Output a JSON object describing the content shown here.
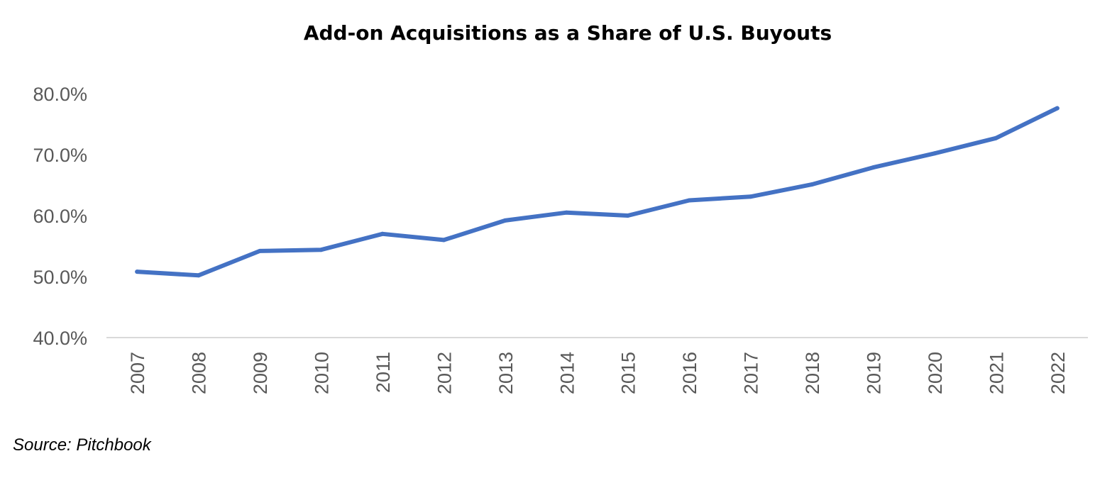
{
  "chart_data": {
    "type": "line",
    "title": "Add-on Acquisitions as a Share of U.S. Buyouts",
    "xlabel": "",
    "ylabel": "",
    "x": [
      "2007",
      "2008",
      "2009",
      "2010",
      "2011",
      "2012",
      "2013",
      "2014",
      "2015",
      "2016",
      "2017",
      "2018",
      "2019",
      "2020",
      "2021",
      "2022"
    ],
    "series": [
      {
        "values": [
          50.8,
          50.2,
          54.2,
          54.4,
          57.0,
          56.0,
          59.2,
          60.5,
          60.0,
          62.5,
          63.1,
          65.1,
          67.9,
          70.2,
          72.7,
          77.6
        ]
      }
    ],
    "ylim": [
      40,
      80
    ],
    "y_ticks": [
      "40.0%",
      "50.0%",
      "60.0%",
      "70.0%",
      "80.0%"
    ],
    "grid": false,
    "legend": "none",
    "line_color": "#4472C4",
    "axis_color": "#D9D9D9"
  },
  "footer": {
    "source": "Source: Pitchbook"
  }
}
